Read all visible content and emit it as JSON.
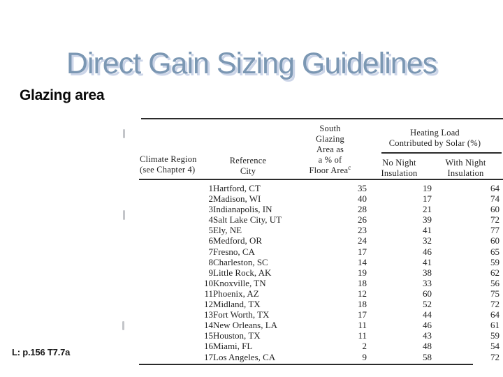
{
  "slide": {
    "title": "Direct Gain Sizing Guidelines",
    "subtitle": "Glazing area",
    "citation": "L: p.156 T7.7a"
  },
  "table": {
    "headers": {
      "climate_region_lines": [
        "Climate Region",
        "(see Chapter 4)"
      ],
      "reference_city_lines": [
        "Reference",
        "City"
      ],
      "glazing_lines": [
        "South",
        "Glazing",
        "Area as",
        "a % of"
      ],
      "glazing_last_line": "Floor Area",
      "glazing_footnote_marker": "c",
      "heating_load_group_lines": [
        "Heating Load",
        "Contributed by Solar (%)"
      ],
      "no_night_lines": [
        "No Night",
        "Insulation"
      ],
      "with_night_lines": [
        "With Night",
        "Insulation"
      ]
    },
    "rows": [
      [
        "1",
        "Hartford, CT",
        "35",
        "19",
        "64"
      ],
      [
        "2",
        "Madison, WI",
        "40",
        "17",
        "74"
      ],
      [
        "3",
        "Indianapolis, IN",
        "28",
        "21",
        "60"
      ],
      [
        "4",
        "Salt Lake City, UT",
        "26",
        "39",
        "72"
      ],
      [
        "5",
        "Ely, NE",
        "23",
        "41",
        "77"
      ],
      [
        "6",
        "Medford, OR",
        "24",
        "32",
        "60"
      ],
      [
        "7",
        "Fresno, CA",
        "17",
        "46",
        "65"
      ],
      [
        "8",
        "Charleston, SC",
        "14",
        "41",
        "59"
      ],
      [
        "9",
        "Little Rock, AK",
        "19",
        "38",
        "62"
      ],
      [
        "10",
        "Knoxville, TN",
        "18",
        "33",
        "56"
      ],
      [
        "11",
        "Phoenix, AZ",
        "12",
        "60",
        "75"
      ],
      [
        "12",
        "Midland, TX",
        "18",
        "52",
        "72"
      ],
      [
        "13",
        "Fort Worth, TX",
        "17",
        "44",
        "64"
      ],
      [
        "14",
        "New Orleans, LA",
        "11",
        "46",
        "61"
      ],
      [
        "15",
        "Houston, TX",
        "11",
        "43",
        "59"
      ],
      [
        "16",
        "Miami, FL",
        "2",
        "48",
        "54"
      ],
      [
        "17",
        "Los Angeles, CA",
        "9",
        "58",
        "72"
      ]
    ]
  },
  "colors": {
    "title": "#7b97b3",
    "title_shadow": "#ccd5e8",
    "body_text": "#1f1f1f",
    "rule": "#2b2b2b",
    "background": "#ffffff"
  }
}
